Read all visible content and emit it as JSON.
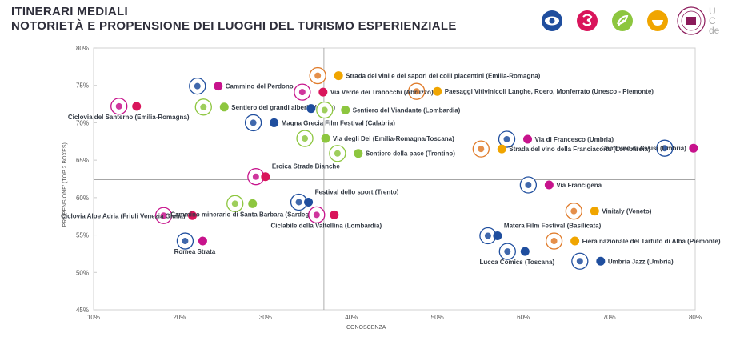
{
  "header": {
    "title_line1": "ITINERARI MEDIALI",
    "title_line2": "NOTORIETÀ E PROPENSIONE DEI LUOGHI DEL TURISMO ESPERIENZIALE"
  },
  "top_icons": [
    {
      "name": "eye-icon",
      "color": "#1f4e9e"
    },
    {
      "name": "culture-icon",
      "color": "#d9155b"
    },
    {
      "name": "nature-icon",
      "color": "#8dc63f"
    },
    {
      "name": "food-icon",
      "color": "#f0a500"
    },
    {
      "name": "university-logo-icon",
      "color": "#8b1a5a"
    }
  ],
  "logo_text": {
    "l1": "U",
    "l2": "C",
    "l3": "de"
  },
  "colors": {
    "blue": "#1f4e9e",
    "red": "#d9155b",
    "green": "#8dc63f",
    "orange": "#f0a500",
    "purple": "#c7138c",
    "darkgreen": "#2e7d32",
    "orange_icon": "#e07b2a",
    "teal": "#4caf8f"
  },
  "chart_data": {
    "type": "scatter",
    "xlabel": "CONOSCENZA",
    "ylabel": "PROPENSIONE' (TOP 2 BOXES)",
    "xlim": [
      10,
      80
    ],
    "ylim": [
      45,
      80
    ],
    "x_ticks": [
      "10%",
      "20%",
      "30%",
      "40%",
      "50%",
      "60%",
      "70%",
      "80%"
    ],
    "y_ticks": [
      "45%",
      "50%",
      "55%",
      "60%",
      "65%",
      "70%",
      "75%",
      "80%"
    ],
    "grid": true,
    "quadrant_lines": {
      "x": 36.8,
      "y": 62.4
    },
    "points": [
      {
        "label": "Strada dei vini e dei sapori dei colli piacentini (Emilia-Romagna)",
        "x": 38.5,
        "y": 76.3,
        "color": "orange",
        "label_pos": "right"
      },
      {
        "label": "Paesaggi Vitivinicoli Langhe, Roero, Monferrato (Unesco - Piemonte)",
        "x": 50.0,
        "y": 74.2,
        "color": "orange",
        "label_pos": "right"
      },
      {
        "label": "Cammino del Perdono",
        "x": 24.5,
        "y": 74.9,
        "color": "purple",
        "label_pos": "right"
      },
      {
        "label": "Via Verde dei Trabocchi (Abruzzo)",
        "x": 36.7,
        "y": 74.1,
        "color": "red",
        "label_pos": "right"
      },
      {
        "label": "Sentiero dei grandi alberi (Veneto)",
        "x": 25.2,
        "y": 72.1,
        "color": "green",
        "label_pos": "right"
      },
      {
        "label": "Sentiero del Viandante (Lombardia)",
        "x": 39.3,
        "y": 71.7,
        "color": "green",
        "label_pos": "right"
      },
      {
        "label": "Ciclovia del Santerno (Emilia-Romagna)",
        "x": 15.0,
        "y": 72.2,
        "color": "red",
        "label_pos": "below"
      },
      {
        "label": "",
        "x": 35.3,
        "y": 71.9,
        "color": "blue",
        "label_pos": "none"
      },
      {
        "label": "Magna Grecia Film Festival (Calabria)",
        "x": 31.0,
        "y": 70.0,
        "color": "blue",
        "label_pos": "right"
      },
      {
        "label": "Via degli Dei (Emilia-Romagna/Toscana)",
        "x": 37.0,
        "y": 67.9,
        "color": "green",
        "label_pos": "right"
      },
      {
        "label": "Sentiero della pace (Trentino)",
        "x": 40.8,
        "y": 65.9,
        "color": "green",
        "label_pos": "right"
      },
      {
        "label": "Via di Francesco (Umbria)",
        "x": 60.5,
        "y": 67.8,
        "color": "purple",
        "label_pos": "right"
      },
      {
        "label": "Strada del vino della Franciacorta (Lombardia)",
        "x": 57.5,
        "y": 66.5,
        "color": "orange",
        "label_pos": "right"
      },
      {
        "label": "Cammino di Assisi (Umbria)",
        "x": 79.8,
        "y": 66.6,
        "color": "purple",
        "label_pos": "left"
      },
      {
        "label": "Eroica Strade Bianche",
        "x": 30.0,
        "y": 62.8,
        "color": "red",
        "label_pos": "above"
      },
      {
        "label": "Festival dello sport (Trento)",
        "x": 35.0,
        "y": 59.4,
        "color": "blue",
        "label_pos": "above"
      },
      {
        "label": "Via Francigena",
        "x": 63.0,
        "y": 61.7,
        "color": "purple",
        "label_pos": "right"
      },
      {
        "label": "Vinitaly (Veneto)",
        "x": 68.3,
        "y": 58.2,
        "color": "orange",
        "label_pos": "right"
      },
      {
        "label": "Ciclovia Alpe Adria (Friuli Venezia Giulia)",
        "x": 21.5,
        "y": 57.6,
        "color": "red",
        "label_pos": "left"
      },
      {
        "label": "Cammino minerario di Santa Barbara (Sardegna)",
        "x": 28.5,
        "y": 59.2,
        "color": "green",
        "label_pos": "below"
      },
      {
        "label": "Ciclabile della Valtellina (Lombardia)",
        "x": 38.0,
        "y": 57.7,
        "color": "red",
        "label_pos": "below"
      },
      {
        "label": "Matera Film Festival (Basilicata)",
        "x": 57.0,
        "y": 54.9,
        "color": "blue",
        "label_pos": "above"
      },
      {
        "label": "Fiera nazionale del Tartufo di Alba (Piemonte)",
        "x": 66.0,
        "y": 54.2,
        "color": "orange",
        "label_pos": "right"
      },
      {
        "label": "Romea Strata",
        "x": 22.7,
        "y": 54.2,
        "color": "purple",
        "label_pos": "below"
      },
      {
        "label": "Lucca Comics (Toscana)",
        "x": 60.2,
        "y": 52.8,
        "color": "blue",
        "label_pos": "below"
      },
      {
        "label": "Umbria Jazz (Umbria)",
        "x": 69.0,
        "y": 51.5,
        "color": "blue",
        "label_pos": "right"
      }
    ]
  }
}
